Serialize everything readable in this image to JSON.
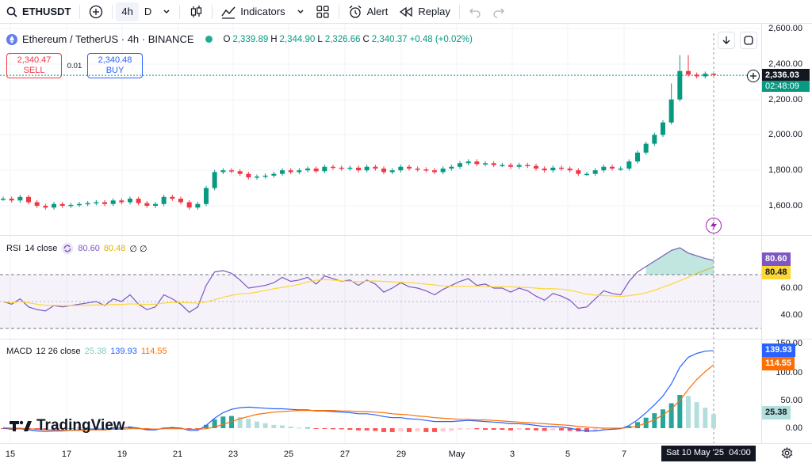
{
  "toolbar": {
    "symbol": "ETHUSDT",
    "interval_active": "4h",
    "interval_other": "D",
    "indicators_label": "Indicators",
    "alert_label": "Alert",
    "replay_label": "Replay"
  },
  "legend": {
    "title": "Ethereum / TetherUS · 4h · BINANCE",
    "o_label": "O",
    "o": "2,339.89",
    "h_label": "H",
    "h": "2,344.90",
    "l_label": "L",
    "l": "2,326.66",
    "c_label": "C",
    "c": "2,340.37",
    "change": "+0.48 (+0.02%)"
  },
  "trade": {
    "sell_price": "2,340.47",
    "sell_label": "SELL",
    "spread": "0.01",
    "buy_price": "2,340.48",
    "buy_label": "BUY"
  },
  "price_scale": {
    "ticks": [
      "2,600.00",
      "2,400.00",
      "2,200.00",
      "2,000.00",
      "1,800.00",
      "1,600.00"
    ],
    "current_price": "2,336.03",
    "countdown": "02:48:09"
  },
  "rsi": {
    "label": "RSI",
    "params": "14 close",
    "value1": "80.60",
    "value2": "80.48",
    "extra": "∅ ∅",
    "ticks": [
      "60.00",
      "40.00"
    ],
    "tag1": "80.60",
    "tag2": "80.48"
  },
  "macd": {
    "label": "MACD",
    "params": "12 26 close",
    "hist": "25.38",
    "macd": "139.93",
    "signal": "114.55",
    "ticks": [
      "150.00",
      "100.00",
      "50.00",
      "0.00"
    ],
    "tag_macd": "139.93",
    "tag_signal": "114.55",
    "tag_hist": "25.38"
  },
  "xaxis": {
    "labels": [
      "15",
      "17",
      "19",
      "21",
      "23",
      "25",
      "27",
      "29",
      "May",
      "3",
      "5",
      "7"
    ],
    "cursor_label": "Sat 10 May '25",
    "cursor_time": "04:00"
  },
  "brand": {
    "name": "TradingView"
  },
  "colors": {
    "up": "#089981",
    "down": "#f23645",
    "rsi": "#7e57c2",
    "rsi_ma": "#fdd835",
    "macd": "#2962ff",
    "signal": "#ff6d00"
  },
  "chart_data": {
    "type": "candlestick",
    "series_close": [
      1640,
      1630,
      1650,
      1620,
      1600,
      1590,
      1610,
      1600,
      1605,
      1610,
      1615,
      1620,
      1610,
      1630,
      1620,
      1640,
      1615,
      1600,
      1610,
      1650,
      1640,
      1620,
      1590,
      1610,
      1700,
      1790,
      1800,
      1795,
      1780,
      1760,
      1765,
      1770,
      1780,
      1800,
      1790,
      1800,
      1810,
      1795,
      1820,
      1815,
      1810,
      1815,
      1800,
      1820,
      1810,
      1790,
      1800,
      1820,
      1810,
      1805,
      1800,
      1790,
      1810,
      1820,
      1840,
      1850,
      1835,
      1840,
      1830,
      1830,
      1820,
      1830,
      1825,
      1810,
      1800,
      1815,
      1810,
      1800,
      1780,
      1780,
      1800,
      1820,
      1810,
      1810,
      1850,
      1900,
      1950,
      2000,
      2070,
      2200,
      2360,
      2340,
      2330,
      2345,
      2340
    ],
    "rsi_values": [
      50,
      48,
      52,
      46,
      44,
      43,
      47,
      46,
      47,
      48,
      49,
      50,
      47,
      52,
      50,
      55,
      48,
      44,
      46,
      55,
      52,
      48,
      42,
      46,
      62,
      72,
      73,
      71,
      66,
      60,
      61,
      62,
      64,
      68,
      65,
      66,
      68,
      63,
      69,
      67,
      65,
      66,
      62,
      66,
      63,
      57,
      60,
      64,
      61,
      60,
      58,
      55,
      59,
      62,
      65,
      67,
      62,
      63,
      60,
      60,
      57,
      60,
      58,
      54,
      51,
      56,
      54,
      51,
      45,
      46,
      52,
      58,
      56,
      55,
      65,
      72,
      76,
      80,
      84,
      88,
      90,
      86,
      84,
      82,
      80.6
    ],
    "macd_values": [
      0,
      -2,
      -1,
      -3,
      -5,
      -6,
      -5,
      -5,
      -4,
      -3,
      -2,
      -1,
      -2,
      0,
      0,
      2,
      0,
      -3,
      -3,
      0,
      1,
      0,
      -4,
      -4,
      5,
      18,
      28,
      34,
      37,
      38,
      37,
      36,
      35,
      35,
      34,
      33,
      33,
      31,
      31,
      30,
      29,
      28,
      26,
      26,
      24,
      21,
      19,
      19,
      17,
      16,
      14,
      12,
      12,
      12,
      13,
      14,
      13,
      12,
      11,
      10,
      8,
      8,
      7,
      5,
      3,
      3,
      2,
      0,
      -3,
      -5,
      -5,
      -3,
      -2,
      -1,
      5,
      15,
      28,
      42,
      58,
      80,
      110,
      128,
      135,
      139,
      139.93
    ],
    "signal_values": [
      1,
      0,
      0,
      -1,
      -2,
      -3,
      -3,
      -4,
      -4,
      -4,
      -3,
      -3,
      -3,
      -2,
      -2,
      -1,
      -1,
      -1,
      -2,
      -1,
      -1,
      -1,
      -2,
      -2,
      -1,
      2,
      7,
      12,
      17,
      21,
      25,
      27,
      29,
      30,
      31,
      32,
      32,
      32,
      32,
      32,
      31,
      31,
      30,
      30,
      29,
      28,
      26,
      25,
      24,
      22,
      21,
      19,
      18,
      17,
      16,
      16,
      15,
      15,
      14,
      13,
      12,
      11,
      10,
      9,
      8,
      7,
      6,
      5,
      3,
      2,
      1,
      0,
      0,
      0,
      1,
      4,
      9,
      15,
      24,
      35,
      50,
      70,
      88,
      102,
      114.55
    ]
  }
}
